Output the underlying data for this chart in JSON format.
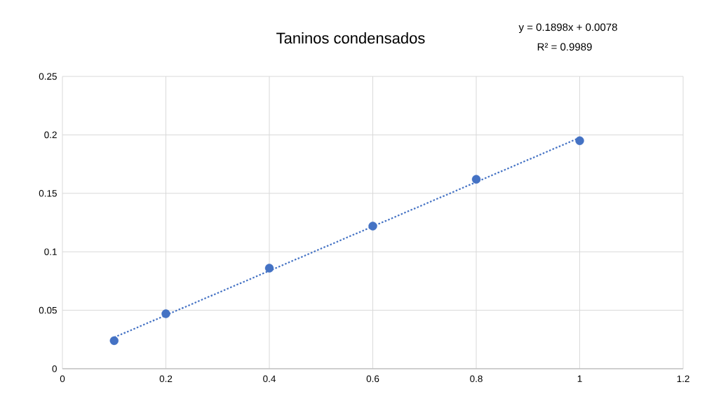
{
  "chart_data": {
    "type": "scatter",
    "title": "Taninos condensados",
    "annotations": [
      "y = 0.1898x + 0.0078",
      "R² = 0.9989"
    ],
    "series": [
      {
        "color": "#4472c4",
        "marker": "circle",
        "x": [
          0.1,
          0.2,
          0.4,
          0.6,
          0.8,
          1.0
        ],
        "values": [
          0.024,
          0.047,
          0.086,
          0.122,
          0.162,
          0.195
        ]
      },
      {
        "type": "line",
        "color": "#4472c4",
        "marker": "none",
        "line_style": "dotted",
        "x": [
          0.1,
          1.0
        ],
        "values": [
          0.0268,
          0.1976
        ]
      }
    ],
    "xlim": [
      0,
      1.2
    ],
    "xticks": [
      0,
      0.2,
      0.4,
      0.6,
      0.8,
      1,
      1.2
    ],
    "ylim": [
      0,
      0.25
    ],
    "yticks": [
      0,
      0.05,
      0.1,
      0.15,
      0.2,
      0.25
    ],
    "grid": true
  }
}
